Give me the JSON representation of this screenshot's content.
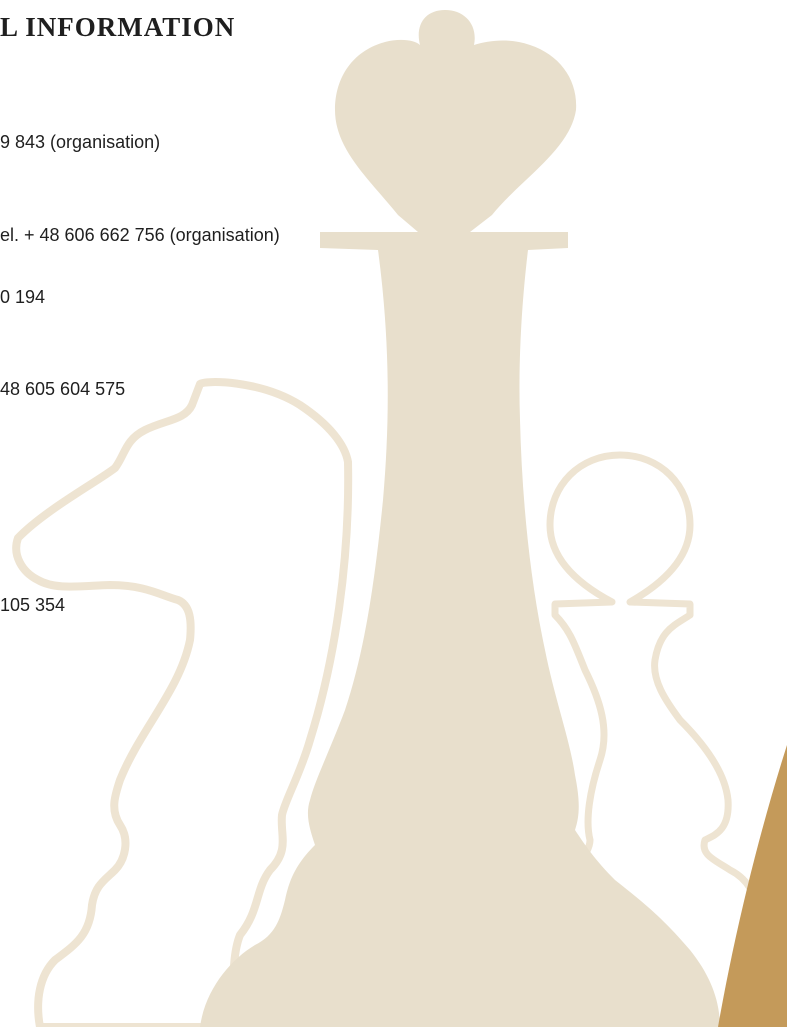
{
  "heading": "L INFORMATION",
  "lines": [
    "9 843 (organisation)",
    "el. + 48 606 662 756 (organisation)",
    "0 194",
    "48 605 604 575",
    "105 354"
  ]
}
